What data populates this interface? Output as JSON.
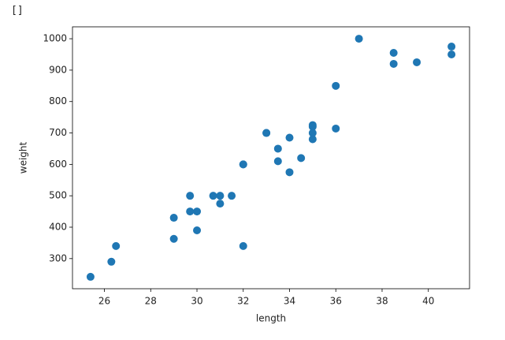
{
  "output": "[]",
  "chart_data": {
    "type": "scatter",
    "x_label": "length",
    "y_label": "weight",
    "color": "#1f77b4",
    "x": [
      25.4,
      26.3,
      26.5,
      29.0,
      29.0,
      29.7,
      29.7,
      30.0,
      30.0,
      30.7,
      31.0,
      31.0,
      31.5,
      32.0,
      32.0,
      32.0,
      33.0,
      33.0,
      33.5,
      33.5,
      34.0,
      34.0,
      34.5,
      35.0,
      35.0,
      35.0,
      35.0,
      36.0,
      36.0,
      37.0,
      38.5,
      38.5,
      39.5,
      41.0,
      41.0
    ],
    "values": [
      242,
      290,
      340,
      363,
      430,
      450,
      500,
      390,
      450,
      500,
      475,
      500,
      500,
      340,
      600,
      600,
      700,
      700,
      610,
      650,
      575,
      685,
      620,
      680,
      700,
      725,
      720,
      714,
      850,
      1000,
      920,
      955,
      925,
      975,
      950
    ],
    "xlim": [
      24.62,
      41.78
    ],
    "ylim": [
      204.1,
      1037.9
    ],
    "xticks": [
      26,
      28,
      30,
      32,
      34,
      36,
      38,
      40
    ],
    "yticks": [
      300,
      400,
      500,
      600,
      700,
      800,
      900,
      1000
    ]
  }
}
